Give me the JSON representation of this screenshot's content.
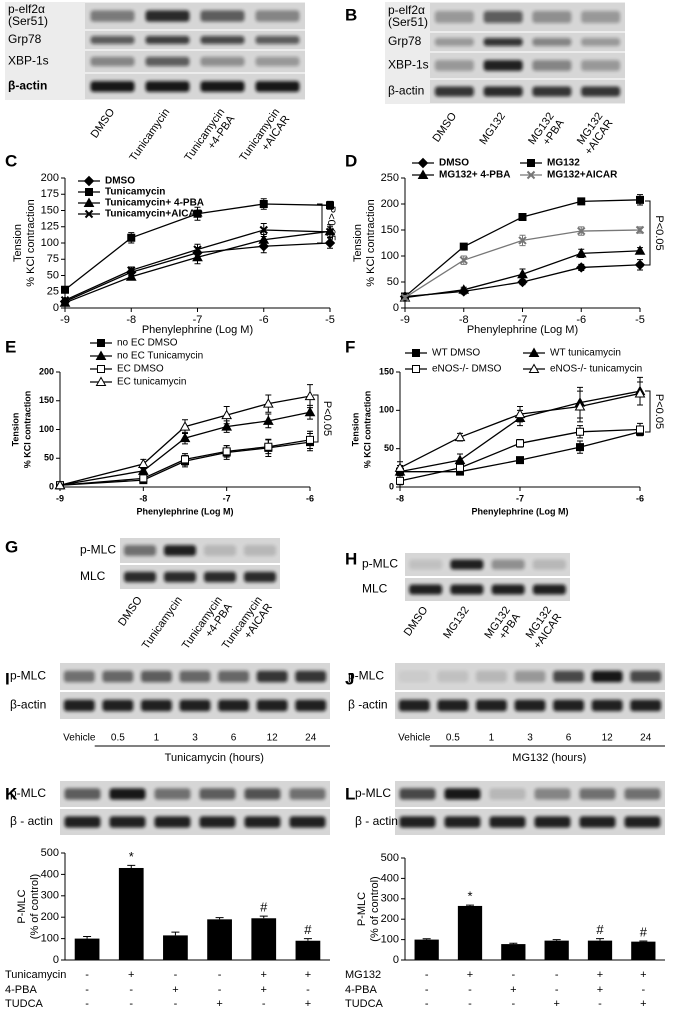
{
  "labels": [
    "A",
    "B",
    "C",
    "D",
    "E",
    "F",
    "G",
    "H",
    "I",
    "J",
    "K",
    "L"
  ],
  "blots": [
    {
      "rows": [
        [
          "p-elf2α",
          "(Ser51)"
        ],
        [
          "Grp78"
        ],
        [
          "XBP-1s"
        ],
        [
          "β-actin"
        ]
      ],
      "lanes": [
        [
          "DMSO"
        ],
        [
          "Tunicamycin"
        ],
        [
          "Tunicamycin",
          "+4-PBA"
        ],
        [
          "Tunicamycin",
          "+AICAR"
        ]
      ]
    },
    {
      "rows": [
        [
          "p-elf2α",
          "(Ser51)"
        ],
        [
          "Grp78"
        ],
        [
          "XBP-1s"
        ],
        [
          "β-actin"
        ]
      ],
      "lanes": [
        [
          "DMSO"
        ],
        [
          "MG132"
        ],
        [
          "MG132",
          "+PBA"
        ],
        [
          "MG132",
          "+AICAR"
        ]
      ]
    },
    {
      "rows": [
        [
          "p-MLC"
        ],
        [
          "MLC"
        ]
      ],
      "lanes": [
        [
          "DMSO"
        ],
        [
          "Tunicamycin"
        ],
        [
          "Tunicamycin",
          "+4-PBA"
        ],
        [
          "Tunicamycin",
          "+AICAR"
        ]
      ]
    },
    {
      "rows": [
        [
          "p-MLC"
        ],
        [
          "MLC"
        ]
      ],
      "lanes": [
        [
          "DMSO"
        ],
        [
          "MG132"
        ],
        [
          "MG132",
          "+PBA"
        ],
        [
          "MG132",
          "+AICAR"
        ]
      ]
    },
    {
      "rows": [
        [
          "p-MLC"
        ],
        [
          "β-actin"
        ]
      ],
      "lanes": [
        [
          "Vehicle"
        ],
        [
          "0.5"
        ],
        [
          "1"
        ],
        [
          "3"
        ],
        [
          "6"
        ],
        [
          "12"
        ],
        [
          "24"
        ]
      ],
      "lane_title": "Tunicamycin (hours)"
    },
    {
      "rows": [
        [
          "p-MLC"
        ],
        [
          "β -actin"
        ]
      ],
      "lanes": [
        [
          "Vehicle"
        ],
        [
          "0.5"
        ],
        [
          "1"
        ],
        [
          "3"
        ],
        [
          "6"
        ],
        [
          "12"
        ],
        [
          "24"
        ]
      ],
      "lane_title": "MG132 (hours)"
    },
    {
      "rows": [
        [
          "p-MLC"
        ],
        [
          "β - actin"
        ]
      ]
    },
    {
      "rows": [
        [
          "p-MLC"
        ],
        [
          "β - actin"
        ]
      ]
    }
  ],
  "chart_data": [
    {
      "type": "line",
      "x": [
        -9,
        -8,
        -7,
        -6,
        -5
      ],
      "xlim": [
        -9,
        -5
      ],
      "xticks": [
        -9,
        -8,
        -7,
        -6,
        -5
      ],
      "ylim": [
        0,
        200
      ],
      "yticks": [
        0,
        25,
        50,
        75,
        100,
        125,
        150,
        175,
        200
      ],
      "xlabel": "Phenylephrine (Log M)",
      "ylabel": [
        "Tension",
        "% KCl contraction"
      ],
      "annotation": "P<0.05",
      "series": [
        {
          "name": "DMSO",
          "color": "#000000",
          "marker": "diamond",
          "values": [
            10,
            55,
            85,
            95,
            100
          ],
          "errors": [
            3,
            5,
            8,
            10,
            8
          ]
        },
        {
          "name": "Tunicamycin",
          "color": "#000000",
          "marker": "square",
          "values": [
            28,
            108,
            145,
            160,
            158
          ],
          "errors": [
            4,
            8,
            10,
            8,
            6
          ]
        },
        {
          "name": "Tunicamycin+ 4-PBA",
          "color": "#000000",
          "marker": "triangle",
          "values": [
            8,
            48,
            78,
            105,
            118
          ],
          "errors": [
            3,
            5,
            10,
            8,
            10
          ]
        },
        {
          "name": "Tunicamycin+AICAR",
          "color": "#000000",
          "marker": "x",
          "values": [
            12,
            58,
            90,
            120,
            117
          ],
          "errors": [
            3,
            5,
            8,
            10,
            8
          ]
        }
      ]
    },
    {
      "type": "line",
      "x": [
        -9,
        -8,
        -7,
        -6,
        -5
      ],
      "xlim": [
        -9,
        -5
      ],
      "xticks": [
        -9,
        -8,
        -7,
        -6,
        -5
      ],
      "ylim": [
        0,
        250
      ],
      "yticks": [
        0,
        50,
        100,
        150,
        200,
        250
      ],
      "xlabel": "Phenylephrine (Log M)",
      "ylabel": [
        "Tension",
        "% KCl contraction"
      ],
      "annotation": "P<0.05",
      "series": [
        {
          "name": "DMSO",
          "color": "#000000",
          "marker": "diamond",
          "values": [
            22,
            32,
            50,
            78,
            83
          ],
          "errors": [
            5,
            5,
            5,
            6,
            10
          ]
        },
        {
          "name": "MG132",
          "color": "#000000",
          "marker": "square",
          "values": [
            22,
            118,
            175,
            205,
            208
          ],
          "errors": [
            4,
            4,
            6,
            5,
            10
          ]
        },
        {
          "name": "MG132+ 4-PBA",
          "color": "#000000",
          "marker": "triangle",
          "values": [
            20,
            35,
            65,
            105,
            110
          ],
          "errors": [
            4,
            5,
            10,
            8,
            6
          ]
        },
        {
          "name": "MG132+AICAR",
          "color": "#777777",
          "marker": "x",
          "values": [
            20,
            92,
            130,
            148,
            150
          ],
          "errors": [
            4,
            8,
            10,
            8,
            6
          ]
        }
      ]
    },
    {
      "type": "line",
      "x": [
        -9,
        -8,
        -7.5,
        -7,
        -6.5,
        -6
      ],
      "xlim": [
        -9,
        -6
      ],
      "xticks": [
        -9,
        -8,
        -7,
        -6
      ],
      "ylim": [
        0,
        200
      ],
      "yticks": [
        0,
        50,
        100,
        150,
        200
      ],
      "xlabel": "Phenylephrine (Log M)",
      "ylabel": [
        "Tension",
        "% KCl contraction"
      ],
      "annotation": "P<0.05",
      "series": [
        {
          "name": "no EC DMSO",
          "color": "#000000",
          "marker": "square",
          "values": [
            3,
            12,
            45,
            60,
            68,
            78
          ],
          "errors": [
            2,
            4,
            10,
            12,
            15,
            15
          ]
        },
        {
          "name": "no EC Tunicamycin",
          "color": "#000000",
          "marker": "triangle",
          "values": [
            3,
            28,
            85,
            105,
            115,
            130
          ],
          "errors": [
            2,
            5,
            10,
            10,
            12,
            12
          ]
        },
        {
          "name": "EC DMSO",
          "color": "#000000",
          "marker": "square-open",
          "values": [
            3,
            15,
            48,
            62,
            70,
            82
          ],
          "errors": [
            2,
            5,
            10,
            10,
            12,
            15
          ]
        },
        {
          "name": "EC tunicamycin",
          "color": "#000000",
          "marker": "triangle-open",
          "values": [
            3,
            40,
            105,
            125,
            145,
            158
          ],
          "errors": [
            2,
            8,
            12,
            15,
            15,
            20
          ]
        }
      ]
    },
    {
      "type": "line",
      "x": [
        -8,
        -7.5,
        -7,
        -6.5,
        -6
      ],
      "xlim": [
        -8,
        -6
      ],
      "xticks": [
        -8,
        -7,
        -6
      ],
      "ylim": [
        0,
        150
      ],
      "yticks": [
        0,
        50,
        100,
        150
      ],
      "xlabel": "Phenylephrine (Log  M)",
      "ylabel": [
        "Tension",
        "% KCl contraction"
      ],
      "annotation": "P<0.05",
      "series": [
        {
          "name": "WT DMSO",
          "color": "#000000",
          "marker": "square",
          "values": [
            20,
            20,
            35,
            52,
            72
          ],
          "errors": [
            5,
            3,
            3,
            8,
            5
          ]
        },
        {
          "name": "WT tunicamycin",
          "color": "#000000",
          "marker": "triangle",
          "values": [
            20,
            35,
            90,
            110,
            125
          ],
          "errors": [
            8,
            8,
            10,
            20,
            18
          ]
        },
        {
          "name": "eNOS-/- DMSO",
          "color": "#000000",
          "marker": "square-open",
          "values": [
            8,
            25,
            57,
            72,
            75
          ],
          "errors": [
            5,
            5,
            5,
            8,
            8
          ]
        },
        {
          "name": "eNOS-/- tunicamycin",
          "color": "#000000",
          "marker": "triangle-open",
          "values": [
            25,
            65,
            95,
            105,
            122
          ],
          "errors": [
            8,
            5,
            10,
            20,
            15
          ]
        }
      ]
    },
    {
      "type": "bar",
      "values": [
        100,
        430,
        115,
        190,
        195,
        90
      ],
      "errors": [
        10,
        12,
        15,
        8,
        10,
        10
      ],
      "marks": [
        null,
        "*",
        null,
        null,
        "#",
        "#"
      ],
      "color": "#000000",
      "ylim": [
        0,
        500
      ],
      "yticks": [
        0,
        100,
        200,
        300,
        400,
        500
      ],
      "ylabel": [
        "P-MLC",
        "(% of control)"
      ],
      "treatments": [
        {
          "name": "Tunicamycin",
          "signs": [
            "-",
            "+",
            "-",
            "-",
            "+",
            "+"
          ]
        },
        {
          "name": "4-PBA",
          "signs": [
            "-",
            "-",
            "+",
            "-",
            "+",
            "-"
          ]
        },
        {
          "name": "TUDCA",
          "signs": [
            "-",
            "-",
            "-",
            "+",
            "-",
            "+"
          ]
        }
      ]
    },
    {
      "type": "bar",
      "values": [
        100,
        265,
        78,
        95,
        95,
        90
      ],
      "errors": [
        4,
        4,
        4,
        5,
        10,
        3
      ],
      "marks": [
        null,
        "*",
        null,
        null,
        "#",
        "#"
      ],
      "color": "#000000",
      "ylim": [
        0,
        500
      ],
      "yticks": [
        0,
        100,
        200,
        300,
        400,
        500
      ],
      "ylabel": [
        "P-MLC",
        "(% of control)"
      ],
      "treatments": [
        {
          "name": "MG132",
          "signs": [
            "-",
            "+",
            "-",
            "-",
            "+",
            "+"
          ]
        },
        {
          "name": "4-PBA",
          "signs": [
            "-",
            "-",
            "+",
            "-",
            "+",
            "-"
          ]
        },
        {
          "name": "TUDCA",
          "signs": [
            "-",
            "-",
            "-",
            "+",
            "-",
            "+"
          ]
        }
      ]
    }
  ]
}
